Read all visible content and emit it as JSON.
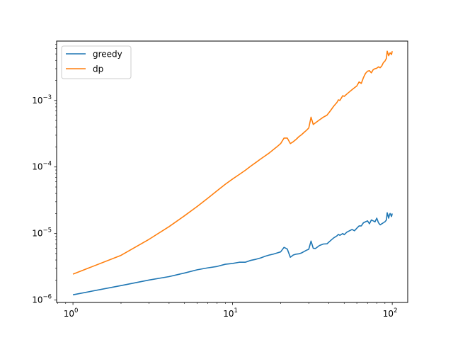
{
  "chart_data": {
    "type": "line",
    "title": "",
    "xlabel": "",
    "ylabel": "",
    "xscale": "log",
    "yscale": "log",
    "xlim": [
      0.79,
      125
    ],
    "ylim": [
      9.2e-07,
      0.0078
    ],
    "grid": false,
    "legend": {
      "placement": "top-left",
      "entries": [
        "greedy",
        "dp"
      ]
    },
    "x_ticks": [
      {
        "value": 1,
        "base": "10",
        "exp": "0"
      },
      {
        "value": 10,
        "base": "10",
        "exp": "1"
      },
      {
        "value": 100,
        "base": "10",
        "exp": "2"
      }
    ],
    "y_ticks": [
      {
        "value": 1e-06,
        "base": "10",
        "exp": "−6"
      },
      {
        "value": 1e-05,
        "base": "10",
        "exp": "−5"
      },
      {
        "value": 0.0001,
        "base": "10",
        "exp": "−4"
      },
      {
        "value": 0.001,
        "base": "10",
        "exp": "−3"
      }
    ],
    "series": [
      {
        "name": "greedy",
        "color": "#1f77b4",
        "points": [
          [
            1,
            1.2e-06
          ],
          [
            2,
            1.65e-06
          ],
          [
            3,
            2e-06
          ],
          [
            4,
            2.25e-06
          ],
          [
            5,
            2.55e-06
          ],
          [
            6,
            2.85e-06
          ],
          [
            7,
            3.05e-06
          ],
          [
            8,
            3.2e-06
          ],
          [
            9,
            3.45e-06
          ],
          [
            10,
            3.55e-06
          ],
          [
            11,
            3.7e-06
          ],
          [
            12,
            3.7e-06
          ],
          [
            13,
            3.95e-06
          ],
          [
            14,
            4.1e-06
          ],
          [
            15,
            4.3e-06
          ],
          [
            16,
            4.55e-06
          ],
          [
            17,
            4.75e-06
          ],
          [
            18,
            4.9e-06
          ],
          [
            19,
            5.1e-06
          ],
          [
            20,
            5.3e-06
          ],
          [
            21,
            6.2e-06
          ],
          [
            22,
            5.85e-06
          ],
          [
            23,
            4.4e-06
          ],
          [
            24,
            4.75e-06
          ],
          [
            25,
            4.9e-06
          ],
          [
            26,
            4.95e-06
          ],
          [
            27,
            5.1e-06
          ],
          [
            28,
            5.35e-06
          ],
          [
            29,
            5.6e-06
          ],
          [
            30,
            5.8e-06
          ],
          [
            31,
            7.7e-06
          ],
          [
            32,
            6e-06
          ],
          [
            33,
            5.95e-06
          ],
          [
            35,
            6.6e-06
          ],
          [
            37,
            6.95e-06
          ],
          [
            39,
            7e-06
          ],
          [
            41,
            7.8e-06
          ],
          [
            43,
            8.6e-06
          ],
          [
            45,
            9.2e-06
          ],
          [
            46,
            9.7e-06
          ],
          [
            47,
            9.4e-06
          ],
          [
            49,
            1e-05
          ],
          [
            50,
            9.6e-06
          ],
          [
            52,
            1.05e-05
          ],
          [
            54,
            1.1e-05
          ],
          [
            56,
            1.15e-05
          ],
          [
            58,
            1.1e-05
          ],
          [
            60,
            1.2e-05
          ],
          [
            62,
            1.3e-05
          ],
          [
            64,
            1.3e-05
          ],
          [
            66,
            1.45e-05
          ],
          [
            68,
            1.5e-05
          ],
          [
            70,
            1.55e-05
          ],
          [
            72,
            1.4e-05
          ],
          [
            74,
            1.6e-05
          ],
          [
            76,
            1.55e-05
          ],
          [
            78,
            1.5e-05
          ],
          [
            80,
            1.7e-05
          ],
          [
            82,
            1.45e-05
          ],
          [
            84,
            1.35e-05
          ],
          [
            86,
            1.4e-05
          ],
          [
            88,
            1.45e-05
          ],
          [
            90,
            1.5e-05
          ],
          [
            92,
            1.6e-05
          ],
          [
            93,
            2.05e-05
          ],
          [
            95,
            1.7e-05
          ],
          [
            96,
            1.9e-05
          ],
          [
            97,
            2e-05
          ],
          [
            99,
            1.8e-05
          ],
          [
            100,
            2e-05
          ]
        ]
      },
      {
        "name": "dp",
        "color": "#ff7f0e",
        "points": [
          [
            1,
            2.45e-06
          ],
          [
            2,
            4.7e-06
          ],
          [
            3,
            8.2e-06
          ],
          [
            4,
            1.27e-05
          ],
          [
            5,
            1.85e-05
          ],
          [
            6,
            2.55e-05
          ],
          [
            7,
            3.4e-05
          ],
          [
            8,
            4.4e-05
          ],
          [
            9,
            5.5e-05
          ],
          [
            10,
            6.6e-05
          ],
          [
            11,
            7.7e-05
          ],
          [
            12,
            8.9e-05
          ],
          [
            13,
            0.000103
          ],
          [
            14,
            0.000117
          ],
          [
            15,
            0.000132
          ],
          [
            16,
            0.000147
          ],
          [
            17,
            0.000163
          ],
          [
            18,
            0.000182
          ],
          [
            19,
            0.000202
          ],
          [
            20,
            0.000225
          ],
          [
            21,
            0.000272
          ],
          [
            22,
            0.000272
          ],
          [
            23,
            0.000225
          ],
          [
            24,
            0.00024
          ],
          [
            25,
            0.00026
          ],
          [
            26,
            0.000285
          ],
          [
            27,
            0.000305
          ],
          [
            28,
            0.00033
          ],
          [
            29,
            0.000355
          ],
          [
            30,
            0.000385
          ],
          [
            31,
            0.00056
          ],
          [
            32,
            0.000435
          ],
          [
            33,
            0.00046
          ],
          [
            35,
            0.00051
          ],
          [
            37,
            0.00056
          ],
          [
            39,
            0.0006
          ],
          [
            41,
            0.0007
          ],
          [
            43,
            0.00082
          ],
          [
            45,
            0.00093
          ],
          [
            46,
            0.00102
          ],
          [
            47,
            0.001
          ],
          [
            49,
            0.00118
          ],
          [
            50,
            0.00115
          ],
          [
            52,
            0.00125
          ],
          [
            54,
            0.00135
          ],
          [
            56,
            0.00145
          ],
          [
            58,
            0.00155
          ],
          [
            60,
            0.00165
          ],
          [
            62,
            0.0019
          ],
          [
            64,
            0.0018
          ],
          [
            66,
            0.0022
          ],
          [
            68,
            0.00255
          ],
          [
            70,
            0.00275
          ],
          [
            72,
            0.0028
          ],
          [
            74,
            0.0026
          ],
          [
            76,
            0.0029
          ],
          [
            78,
            0.003
          ],
          [
            80,
            0.00305
          ],
          [
            82,
            0.0032
          ],
          [
            84,
            0.0031
          ],
          [
            86,
            0.0033
          ],
          [
            88,
            0.0037
          ],
          [
            90,
            0.0039
          ],
          [
            92,
            0.0043
          ],
          [
            93,
            0.0055
          ],
          [
            95,
            0.0047
          ],
          [
            96,
            0.005
          ],
          [
            97,
            0.0052
          ],
          [
            99,
            0.0049
          ],
          [
            100,
            0.0055
          ]
        ]
      }
    ]
  }
}
